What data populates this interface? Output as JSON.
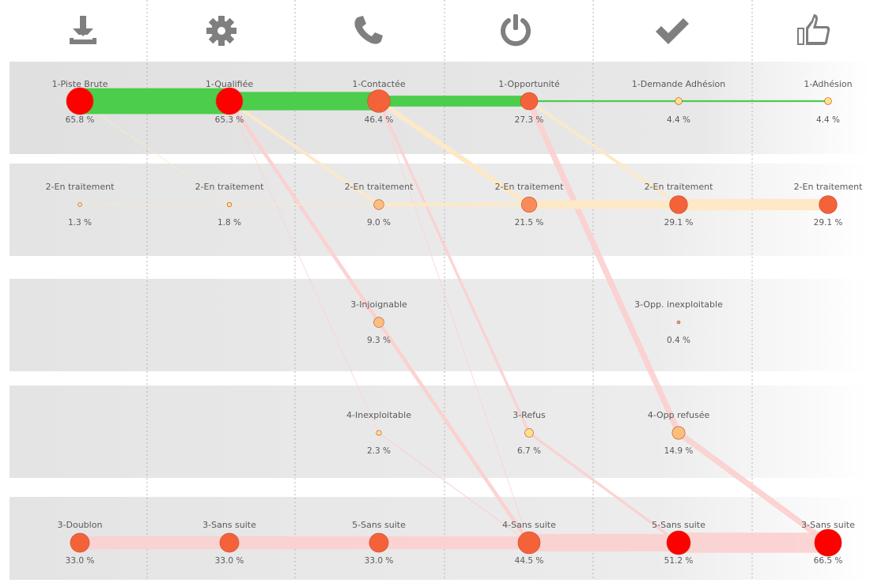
{
  "stages": [
    {
      "icon": "download-icon"
    },
    {
      "icon": "gear-icon"
    },
    {
      "icon": "phone-icon"
    },
    {
      "icon": "power-icon"
    },
    {
      "icon": "checkmark-icon"
    },
    {
      "icon": "thumbs-up-icon"
    }
  ],
  "rows": [
    "main",
    "en-traitement",
    "status-a",
    "status-b",
    "terminal"
  ],
  "colors": {
    "flow_main": "#4ccd4c",
    "flow_progress": "#fde9c8",
    "flow_loss": "#fcd0d0",
    "node_red": "#ff0000",
    "node_orange": "#f4623a",
    "node_light_orange": "#f98c5a",
    "node_yellow": "#fde28a",
    "node_peach": "#fbbf7d",
    "icon_gray": "#7f7f7f",
    "band_gray": "#e6e6e6"
  },
  "nodes": [
    {
      "id": "n1",
      "stage": 0,
      "row": 0,
      "label": "1-Piste Brute",
      "percent": 65.8,
      "pct_text": "65.8 %",
      "color": "#ff0000"
    },
    {
      "id": "n2",
      "stage": 1,
      "row": 0,
      "label": "1-Qualifiée",
      "percent": 65.3,
      "pct_text": "65.3 %",
      "color": "#ff0000"
    },
    {
      "id": "n3",
      "stage": 2,
      "row": 0,
      "label": "1-Contactée",
      "percent": 46.4,
      "pct_text": "46.4 %",
      "color": "#f4623a"
    },
    {
      "id": "n4",
      "stage": 3,
      "row": 0,
      "label": "1-Opportunité",
      "percent": 27.3,
      "pct_text": "27.3 %",
      "color": "#f4623a"
    },
    {
      "id": "n5",
      "stage": 4,
      "row": 0,
      "label": "1-Demande Adhésion",
      "percent": 4.4,
      "pct_text": "4.4 %",
      "color": "#fde28a"
    },
    {
      "id": "n6",
      "stage": 5,
      "row": 0,
      "label": "1-Adhésion",
      "percent": 4.4,
      "pct_text": "4.4 %",
      "color": "#fde28a"
    },
    {
      "id": "t1",
      "stage": 0,
      "row": 1,
      "label": "2-En traitement",
      "percent": 1.3,
      "pct_text": "1.3 %",
      "color": "#fde28a"
    },
    {
      "id": "t2",
      "stage": 1,
      "row": 1,
      "label": "2-En traitement",
      "percent": 1.8,
      "pct_text": "1.8 %",
      "color": "#fde28a"
    },
    {
      "id": "t3",
      "stage": 2,
      "row": 1,
      "label": "2-En traitement",
      "percent": 9.0,
      "pct_text": "9.0 %",
      "color": "#fbbf7d"
    },
    {
      "id": "t4",
      "stage": 3,
      "row": 1,
      "label": "2-En traitement",
      "percent": 21.5,
      "pct_text": "21.5 %",
      "color": "#f98c5a"
    },
    {
      "id": "t5",
      "stage": 4,
      "row": 1,
      "label": "2-En traitement",
      "percent": 29.1,
      "pct_text": "29.1 %",
      "color": "#f4623a"
    },
    {
      "id": "t6",
      "stage": 5,
      "row": 1,
      "label": "2-En traitement",
      "percent": 29.1,
      "pct_text": "29.1 %",
      "color": "#f4623a"
    },
    {
      "id": "s1",
      "stage": 2,
      "row": 2,
      "label": "3-Injoignable",
      "percent": 9.3,
      "pct_text": "9.3 %",
      "color": "#fbbf7d"
    },
    {
      "id": "s2",
      "stage": 4,
      "row": 2,
      "label": "3-Opp. inexploitable",
      "percent": 0.4,
      "pct_text": "0.4 %",
      "color": "#c8a878"
    },
    {
      "id": "r1",
      "stage": 2,
      "row": 3,
      "label": "4-Inexploitable",
      "percent": 2.3,
      "pct_text": "2.3 %",
      "color": "#fde28a"
    },
    {
      "id": "r2",
      "stage": 3,
      "row": 3,
      "label": "3-Refus",
      "percent": 6.7,
      "pct_text": "6.7 %",
      "color": "#fde28a"
    },
    {
      "id": "r3",
      "stage": 4,
      "row": 3,
      "label": "4-Opp refusée",
      "percent": 14.9,
      "pct_text": "14.9 %",
      "color": "#fbbf7d"
    },
    {
      "id": "e1",
      "stage": 0,
      "row": 4,
      "label": "3-Doublon",
      "percent": 33.0,
      "pct_text": "33.0 %",
      "color": "#f4623a"
    },
    {
      "id": "e2",
      "stage": 1,
      "row": 4,
      "label": "3-Sans suite",
      "percent": 33.0,
      "pct_text": "33.0 %",
      "color": "#f4623a"
    },
    {
      "id": "e3",
      "stage": 2,
      "row": 4,
      "label": "5-Sans suite",
      "percent": 33.0,
      "pct_text": "33.0 %",
      "color": "#f4623a"
    },
    {
      "id": "e4",
      "stage": 3,
      "row": 4,
      "label": "4-Sans suite",
      "percent": 44.5,
      "pct_text": "44.5 %",
      "color": "#f4623a"
    },
    {
      "id": "e5",
      "stage": 4,
      "row": 4,
      "label": "5-Sans suite",
      "percent": 51.2,
      "pct_text": "51.2 %",
      "color": "#ff0000"
    },
    {
      "id": "e6",
      "stage": 5,
      "row": 4,
      "label": "3-Sans suite",
      "percent": 66.5,
      "pct_text": "66.5 %",
      "color": "#ff0000"
    }
  ],
  "flows": [
    {
      "from": "n1",
      "to": "n2",
      "value": 65.3,
      "kind": "main"
    },
    {
      "from": "n2",
      "to": "n3",
      "value": 46.4,
      "kind": "main"
    },
    {
      "from": "n3",
      "to": "n4",
      "value": 27.3,
      "kind": "main"
    },
    {
      "from": "n4",
      "to": "n5",
      "value": 4.4,
      "kind": "main"
    },
    {
      "from": "n5",
      "to": "n6",
      "value": 4.4,
      "kind": "main"
    },
    {
      "from": "n1",
      "to": "t2",
      "value": 0.5,
      "kind": "progress"
    },
    {
      "from": "t1",
      "to": "t2",
      "value": 1.3,
      "kind": "progress"
    },
    {
      "from": "t2",
      "to": "t3",
      "value": 1.8,
      "kind": "progress"
    },
    {
      "from": "n2",
      "to": "t3",
      "value": 7.2,
      "kind": "progress"
    },
    {
      "from": "t3",
      "to": "t4",
      "value": 9.0,
      "kind": "progress"
    },
    {
      "from": "n3",
      "to": "t4",
      "value": 12.5,
      "kind": "progress"
    },
    {
      "from": "t4",
      "to": "t5",
      "value": 21.5,
      "kind": "progress"
    },
    {
      "from": "n4",
      "to": "t5",
      "value": 7.6,
      "kind": "progress"
    },
    {
      "from": "t5",
      "to": "t6",
      "value": 29.1,
      "kind": "progress"
    },
    {
      "from": "e1",
      "to": "e2",
      "value": 33.0,
      "kind": "loss"
    },
    {
      "from": "e2",
      "to": "e3",
      "value": 33.0,
      "kind": "loss"
    },
    {
      "from": "e3",
      "to": "e4",
      "value": 33.0,
      "kind": "loss"
    },
    {
      "from": "e4",
      "to": "e5",
      "value": 44.5,
      "kind": "loss"
    },
    {
      "from": "e5",
      "to": "e6",
      "value": 51.2,
      "kind": "loss"
    },
    {
      "from": "n2",
      "to": "s1",
      "value": 9.3,
      "kind": "loss"
    },
    {
      "from": "n2",
      "to": "e4",
      "value": 0.4,
      "kind": "loss"
    },
    {
      "from": "n2",
      "to": "r1",
      "value": 1.0,
      "kind": "loss"
    },
    {
      "from": "n3",
      "to": "r2",
      "value": 6.7,
      "kind": "loss"
    },
    {
      "from": "n3",
      "to": "e4",
      "value": 1.5,
      "kind": "loss"
    },
    {
      "from": "n4",
      "to": "r3",
      "value": 14.9,
      "kind": "loss"
    },
    {
      "from": "r1",
      "to": "e4",
      "value": 2.3,
      "kind": "loss"
    },
    {
      "from": "s1",
      "to": "e4",
      "value": 9.3,
      "kind": "loss"
    },
    {
      "from": "r2",
      "to": "e5",
      "value": 6.7,
      "kind": "loss"
    },
    {
      "from": "r3",
      "to": "e6",
      "value": 14.9,
      "kind": "loss"
    }
  ]
}
